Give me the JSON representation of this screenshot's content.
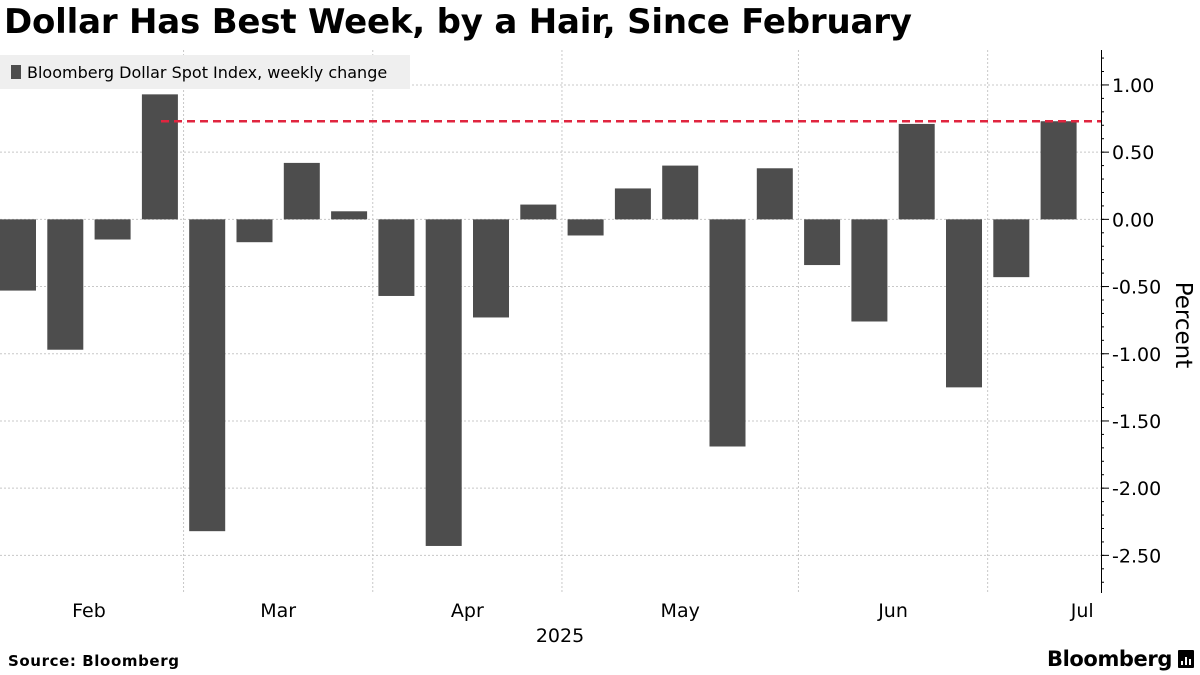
{
  "header": {
    "title": "Dollar Has Best Week, by a Hair, Since February"
  },
  "footer": {
    "source": "Source: Bloomberg",
    "brand": "Bloomberg",
    "brand_icon": "bloomberg-terminal-icon"
  },
  "colors": {
    "bar": "#4d4d4d",
    "reference_line": "#e0253f",
    "grid": "#c8c8c8",
    "legend_bg": "#efefef"
  },
  "chart_data": {
    "type": "bar",
    "title": "Dollar Has Best Week, by a Hair, Since February",
    "ylabel": "Percent",
    "xlabel": "2025",
    "ylim": [
      -2.78,
      1.26
    ],
    "grid": true,
    "legend_placement": "top-left",
    "series": [
      {
        "name": "Bloomberg Dollar Spot Index, weekly change",
        "values": [
          -0.53,
          -0.97,
          -0.15,
          0.93,
          -2.32,
          -0.17,
          0.42,
          0.06,
          -0.57,
          -2.43,
          -0.73,
          0.11,
          -0.12,
          0.23,
          0.4,
          -1.69,
          0.38,
          -0.34,
          -0.76,
          0.71,
          -1.25,
          -0.43,
          0.73
        ]
      }
    ],
    "reference_line": {
      "value": 0.73,
      "style": "dashed"
    },
    "y_ticks": [
      1.0,
      0.5,
      0.0,
      -0.5,
      -1.0,
      -1.5,
      -2.0,
      -2.5
    ],
    "y_tick_labels": [
      "1.00",
      "0.50",
      "0.00",
      "-0.50",
      "-1.00",
      "-1.50",
      "-2.00",
      "-2.50"
    ],
    "month_labels": [
      "Feb",
      "Mar",
      "Apr",
      "May",
      "Jun",
      "Jul"
    ]
  }
}
